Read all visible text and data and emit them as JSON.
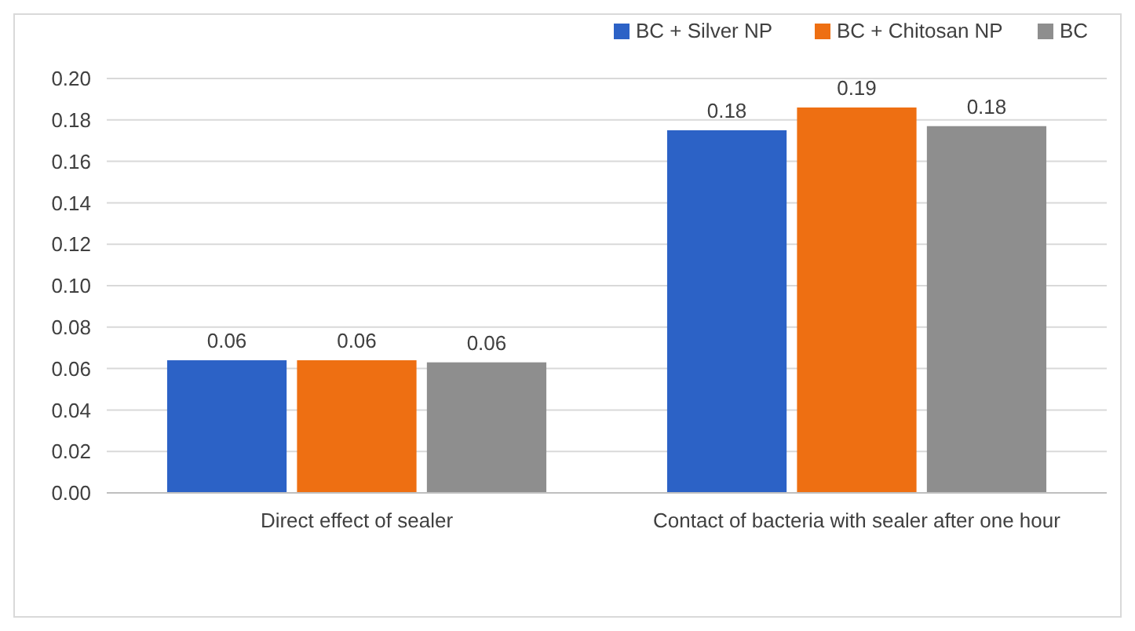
{
  "chart_data": {
    "type": "bar",
    "categories": [
      "Direct effect of sealer",
      "Contact of bacteria with sealer after one hour"
    ],
    "series": [
      {
        "name": "BC + Silver NP",
        "color": "#2c62c6",
        "values": [
          0.064,
          0.175
        ],
        "value_labels": [
          "0.06",
          "0.18"
        ]
      },
      {
        "name": "BC + Chitosan NP",
        "color": "#ee6f12",
        "values": [
          0.064,
          0.186
        ],
        "value_labels": [
          "0.06",
          "0.19"
        ]
      },
      {
        "name": "BC",
        "color": "#8e8e8e",
        "values": [
          0.063,
          0.177
        ],
        "value_labels": [
          "0.06",
          "0.18"
        ]
      }
    ],
    "ylim": [
      0,
      0.2
    ],
    "yticks": [
      "0.00",
      "0.02",
      "0.04",
      "0.06",
      "0.08",
      "0.10",
      "0.12",
      "0.14",
      "0.16",
      "0.18",
      "0.20"
    ],
    "grid": "y",
    "legend": "top right"
  }
}
